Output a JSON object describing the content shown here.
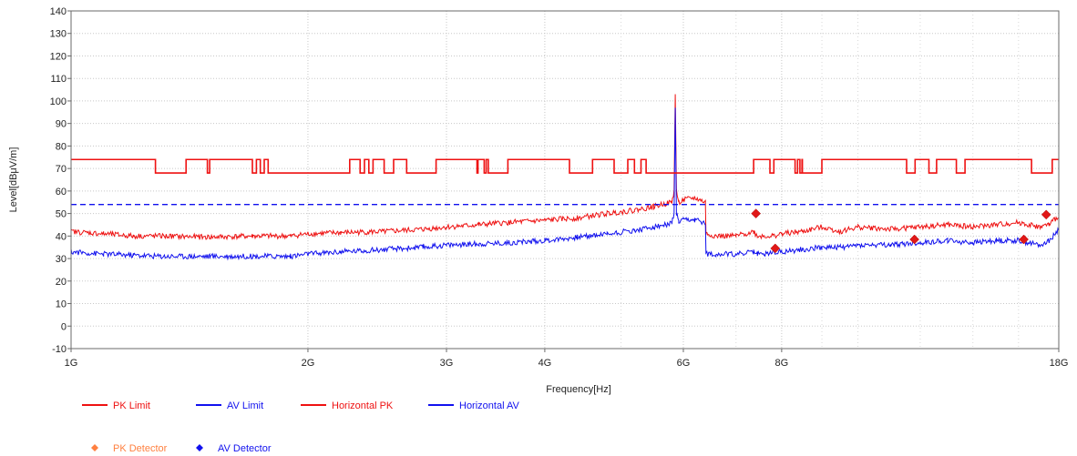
{
  "chart_data": {
    "type": "line",
    "xlabel": "Frequency[Hz]",
    "ylabel": "Level[dBμV/m]",
    "x_scale": "log",
    "xlim": [
      1,
      18
    ],
    "ylim": [
      -10,
      140
    ],
    "x_ticks": [
      {
        "value": 1,
        "label": "1G"
      },
      {
        "value": 2,
        "label": "2G"
      },
      {
        "value": 3,
        "label": "3G"
      },
      {
        "value": 4,
        "label": "4G"
      },
      {
        "value": 6,
        "label": "6G"
      },
      {
        "value": 8,
        "label": "8G"
      },
      {
        "value": 18,
        "label": "18G"
      }
    ],
    "x_minor_ticks": [
      5,
      7,
      9,
      10,
      12,
      14,
      16
    ],
    "y_ticks": [
      -10,
      0,
      10,
      20,
      30,
      40,
      50,
      60,
      70,
      80,
      90,
      100,
      110,
      120,
      130,
      140
    ],
    "grid": true,
    "legend": [
      {
        "name": "PK Limit",
        "color": "#ee1111",
        "style": "line"
      },
      {
        "name": "AV Limit",
        "color": "#1111ee",
        "style": "line"
      },
      {
        "name": "Horizontal PK",
        "color": "#ee1111",
        "style": "line"
      },
      {
        "name": "Horizontal AV",
        "color": "#1111ee",
        "style": "line"
      },
      {
        "name": "PK Detector",
        "color": "#ff8040",
        "style": "marker"
      },
      {
        "name": "AV Detector",
        "color": "#1111ee",
        "style": "marker"
      }
    ],
    "series": [
      {
        "name": "PK Limit",
        "color": "#ee1111",
        "kind": "step",
        "base": 74,
        "notch_value": 68,
        "notches": [
          [
            1.28,
            1.4
          ],
          [
            1.49,
            1.5
          ],
          [
            1.7,
            1.72
          ],
          [
            1.74,
            1.76
          ],
          [
            1.78,
            2.26
          ],
          [
            2.33,
            2.36
          ],
          [
            2.39,
            2.42
          ],
          [
            2.5,
            2.57
          ],
          [
            2.67,
            2.91
          ],
          [
            3.28,
            3.29
          ],
          [
            3.35,
            3.37
          ],
          [
            3.39,
            3.59
          ],
          [
            4.3,
            4.6
          ],
          [
            4.9,
            5.1
          ],
          [
            5.2,
            5.3
          ],
          [
            5.38,
            7.37
          ],
          [
            7.73,
            7.82
          ],
          [
            8.32,
            8.38
          ],
          [
            8.44,
            8.49
          ],
          [
            8.5,
            9.0
          ],
          [
            11.53,
            11.82
          ],
          [
            12.31,
            12.59
          ],
          [
            13.34,
            13.68
          ],
          [
            16.62,
            17.66
          ]
        ]
      },
      {
        "name": "AV Limit",
        "color": "#1111ee",
        "kind": "dashed-limit",
        "value": 54
      },
      {
        "name": "Horizontal PK",
        "color": "#ee1111",
        "x": [
          1.0,
          1.1,
          1.2,
          1.3,
          1.5,
          1.7,
          1.9,
          2.0,
          2.2,
          2.5,
          2.8,
          3.0,
          3.3,
          3.6,
          4.0,
          4.4,
          4.8,
          5.2,
          5.5,
          5.7,
          5.8,
          5.84,
          5.86,
          5.88,
          5.92,
          6.0,
          6.2,
          6.4,
          6.41,
          6.6,
          7.0,
          7.37,
          7.45,
          7.6,
          7.8,
          8.0,
          8.5,
          9.0,
          9.5,
          10.0,
          11.0,
          12.0,
          13.0,
          14.0,
          15.0,
          16.0,
          17.0,
          17.5,
          18.0
        ],
        "y": [
          42,
          41,
          40,
          40,
          39.5,
          40,
          40,
          41,
          41.5,
          42,
          43,
          44,
          45,
          46,
          47,
          48,
          50,
          51.5,
          53,
          54.5,
          55,
          60,
          103,
          60,
          55,
          56,
          57,
          55,
          41,
          40,
          40,
          42,
          40,
          40,
          40,
          41,
          42,
          44,
          42,
          44,
          43,
          44,
          45,
          44,
          45,
          46,
          44,
          45,
          49
        ]
      },
      {
        "name": "Horizontal AV",
        "color": "#1111ee",
        "x": [
          1.0,
          1.1,
          1.2,
          1.3,
          1.5,
          1.7,
          1.9,
          2.0,
          2.2,
          2.5,
          2.8,
          3.0,
          3.3,
          3.6,
          4.0,
          4.4,
          4.8,
          5.2,
          5.5,
          5.7,
          5.8,
          5.84,
          5.86,
          5.88,
          5.92,
          6.0,
          6.2,
          6.4,
          6.41,
          6.6,
          7.0,
          7.37,
          7.45,
          7.6,
          7.8,
          8.0,
          8.5,
          9.0,
          9.5,
          10.0,
          11.0,
          12.0,
          13.0,
          14.0,
          15.0,
          16.0,
          17.0,
          17.5,
          18.0
        ],
        "y": [
          33,
          32,
          31.5,
          31,
          31,
          31,
          31,
          32,
          33,
          34,
          35,
          36,
          36.5,
          37,
          38,
          39.5,
          41,
          42.5,
          44,
          45,
          45.5,
          50,
          97,
          50,
          46,
          47,
          47,
          46,
          32,
          32,
          32,
          33,
          32,
          32,
          33,
          33,
          34,
          35,
          35,
          36,
          36,
          37,
          38,
          37,
          38,
          38,
          36,
          38,
          43
        ]
      }
    ],
    "markers": [
      {
        "series": "PK Detector",
        "points": [
          [
            7.42,
            50
          ],
          [
            7.85,
            34.5
          ],
          [
            11.8,
            38.5
          ],
          [
            16.25,
            38.5
          ],
          [
            17.35,
            49.5
          ]
        ]
      }
    ]
  }
}
